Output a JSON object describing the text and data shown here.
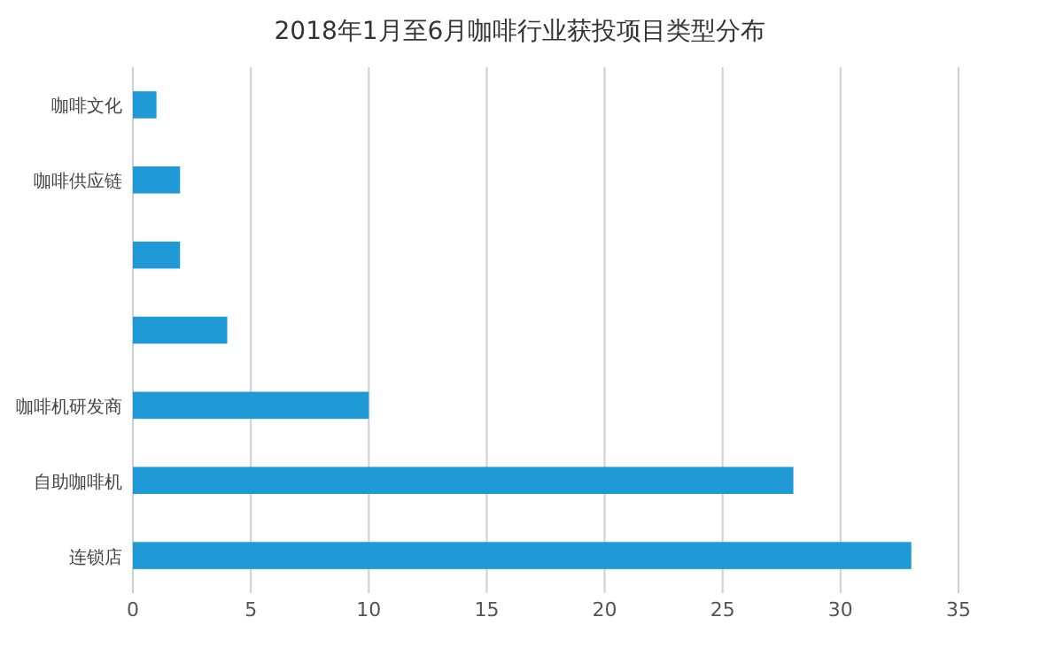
{
  "chart_data": {
    "type": "bar",
    "orientation": "horizontal",
    "title": "2018年1月至6月咖啡行业获投项目类型分布",
    "categories": [
      "咖啡文化",
      "咖啡供应链",
      null,
      null,
      "咖啡机研发商",
      "自助咖啡机",
      "连锁店"
    ],
    "values": [
      1,
      2,
      2,
      4,
      10,
      28,
      33
    ],
    "color": "#1f9ad6",
    "xlim": [
      0,
      35
    ],
    "xticks": [
      0,
      5,
      10,
      15,
      20,
      25,
      30,
      35
    ],
    "grid": "x"
  }
}
